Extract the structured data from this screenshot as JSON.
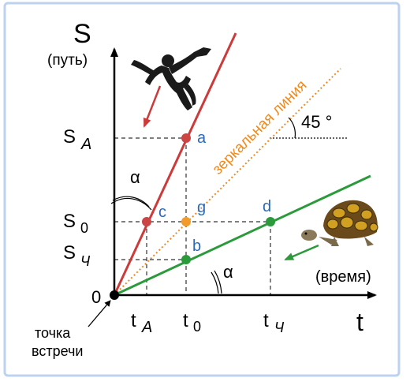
{
  "axes": {
    "y_symbol": "S",
    "y_caption": "(путь)",
    "x_symbol": "t",
    "x_caption": "(время)",
    "origin": "0"
  },
  "y_ticks": {
    "sa_main": "S",
    "sa_sub": "А",
    "s0_main": "S",
    "s0_sub": "0",
    "sch_main": "S",
    "sch_sub": "Ч"
  },
  "x_ticks": {
    "ta_main": "t",
    "ta_sub": "А",
    "t0_main": "t",
    "t0_sub": "0",
    "tch_main": "t",
    "tch_sub": "Ч"
  },
  "points": {
    "a": "a",
    "b": "b",
    "c": "c",
    "d": "d",
    "g": "g"
  },
  "mirror_line_label": "зеркальная линия",
  "angle_45": "45 °",
  "alpha": "α",
  "meeting_point": {
    "line1": "точка",
    "line2": "встречи"
  },
  "colors": {
    "achilles_line": "#cc3a3a",
    "tortoise_line": "#2a9a3a",
    "mirror_line": "#f08a1a",
    "label_blue": "#2a6ab8",
    "axis": "#000000",
    "frame": "#bcd2ee"
  },
  "icons": {
    "runner": "runner-figure-icon",
    "turtle": "turtle-icon"
  }
}
